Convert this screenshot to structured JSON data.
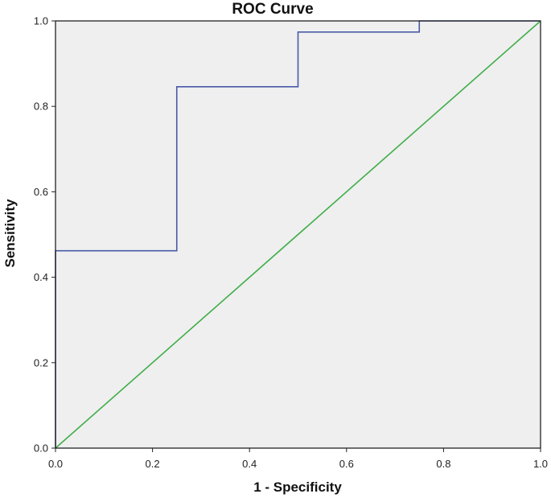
{
  "chart_data": {
    "type": "line",
    "title": "ROC Curve",
    "xlabel": "1 - Specificity",
    "ylabel": "Sensitivity",
    "xlim": [
      0.0,
      1.0
    ],
    "ylim": [
      0.0,
      1.0
    ],
    "x_ticks": [
      "0.0",
      "0.2",
      "0.4",
      "0.6",
      "0.8",
      "1.0"
    ],
    "y_ticks": [
      "0.0",
      "0.2",
      "0.4",
      "0.6",
      "0.8",
      "1.0"
    ],
    "grid": false,
    "series": [
      {
        "color": "#4a5aa8",
        "step": true,
        "x": [
          0.0,
          0.0,
          0.25,
          0.25,
          0.5,
          0.5,
          0.75,
          0.75,
          1.0
        ],
        "y": [
          0.0,
          0.462,
          0.462,
          0.846,
          0.846,
          0.974,
          0.974,
          1.0,
          1.0
        ]
      },
      {
        "color": "#3fae49",
        "step": false,
        "x": [
          0.0,
          1.0
        ],
        "y": [
          0.0,
          1.0
        ]
      }
    ]
  },
  "colors": {
    "plot_background": "#efefef",
    "frame": "#222222"
  }
}
